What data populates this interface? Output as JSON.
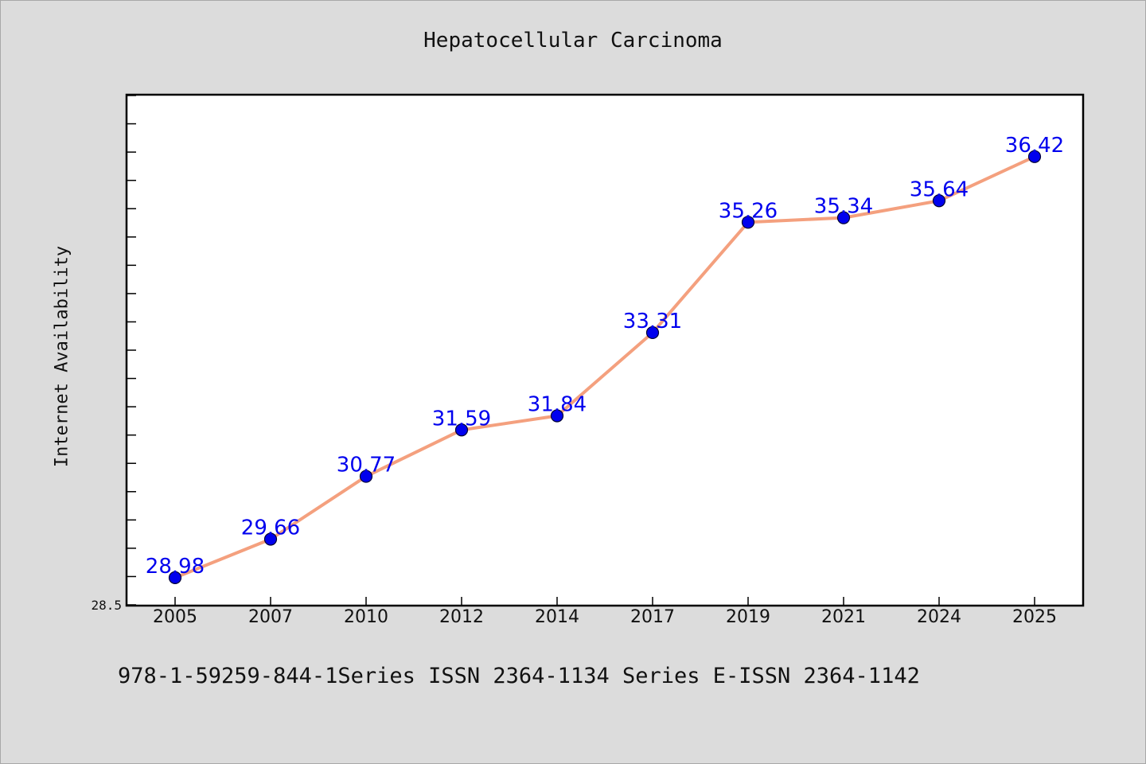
{
  "chart_data": {
    "type": "line",
    "title": "Hepatocellular Carcinoma",
    "xlabel": "",
    "ylabel": "Internet Availability",
    "categories": [
      "2005",
      "2007",
      "2010",
      "2012",
      "2014",
      "2017",
      "2019",
      "2021",
      "2024",
      "2025"
    ],
    "values": [
      28.98,
      29.66,
      30.77,
      31.59,
      31.84,
      33.31,
      35.26,
      35.34,
      35.64,
      36.42
    ],
    "data_labels": [
      "28.98",
      "29.66",
      "30.77",
      "31.59",
      "31.84",
      "33.31",
      "35.26",
      "35.34",
      "35.64",
      "36.42"
    ],
    "y_tick_labels": [
      "28.5"
    ],
    "ylim": [
      28.5,
      37.5
    ],
    "grid": false,
    "legend": "none",
    "line_color": "#f4a07e",
    "marker_color": "#0000ee",
    "label_color": "#0000ee"
  },
  "footer": "978-1-59259-844-1Series ISSN 2364-1134 Series E-ISSN 2364-1142"
}
